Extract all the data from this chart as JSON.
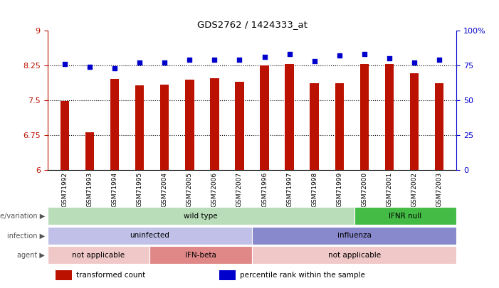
{
  "title": "GDS2762 / 1424333_at",
  "samples": [
    "GSM71992",
    "GSM71993",
    "GSM71994",
    "GSM71995",
    "GSM72004",
    "GSM72005",
    "GSM72006",
    "GSM72007",
    "GSM71996",
    "GSM71997",
    "GSM71998",
    "GSM71999",
    "GSM72000",
    "GSM72001",
    "GSM72002",
    "GSM72003"
  ],
  "bar_values": [
    7.48,
    6.82,
    7.95,
    7.82,
    7.84,
    7.94,
    7.97,
    7.9,
    8.25,
    8.27,
    7.87,
    7.87,
    8.27,
    8.27,
    8.08,
    7.87
  ],
  "percentile_values": [
    76,
    74,
    73,
    77,
    77,
    79,
    79,
    79,
    81,
    83,
    78,
    82,
    83,
    80,
    77,
    79
  ],
  "ymin": 6,
  "ymax": 9,
  "yticks": [
    6,
    6.75,
    7.5,
    8.25,
    9
  ],
  "ytick_labels": [
    "6",
    "6.75",
    "7.5",
    "8.25",
    "9"
  ],
  "right_yticks": [
    0,
    25,
    50,
    75,
    100
  ],
  "right_ytick_labels": [
    "0",
    "25",
    "50",
    "75",
    "100%"
  ],
  "bar_color": "#bb1100",
  "dot_color": "#0000cc",
  "hline_values": [
    6.75,
    7.5,
    8.25
  ],
  "genotype_groups": [
    {
      "label": "wild type",
      "start": 0,
      "end": 12,
      "color": "#b8ddb8"
    },
    {
      "label": "IFNR null",
      "start": 12,
      "end": 16,
      "color": "#44bb44"
    }
  ],
  "infection_groups": [
    {
      "label": "uninfected",
      "start": 0,
      "end": 8,
      "color": "#c0c0e8"
    },
    {
      "label": "influenza",
      "start": 8,
      "end": 16,
      "color": "#8888cc"
    }
  ],
  "agent_groups": [
    {
      "label": "not applicable",
      "start": 0,
      "end": 4,
      "color": "#f0c8c8"
    },
    {
      "label": "IFN-beta",
      "start": 4,
      "end": 8,
      "color": "#e08888"
    },
    {
      "label": "not applicable",
      "start": 8,
      "end": 16,
      "color": "#f0c8c8"
    }
  ],
  "row_labels": [
    "genotype/variation",
    "infection",
    "agent"
  ],
  "legend_items": [
    {
      "label": "transformed count",
      "color": "#bb1100"
    },
    {
      "label": "percentile rank within the sample",
      "color": "#0000cc"
    }
  ],
  "tick_area_color": "#cccccc",
  "label_color": "#555555"
}
